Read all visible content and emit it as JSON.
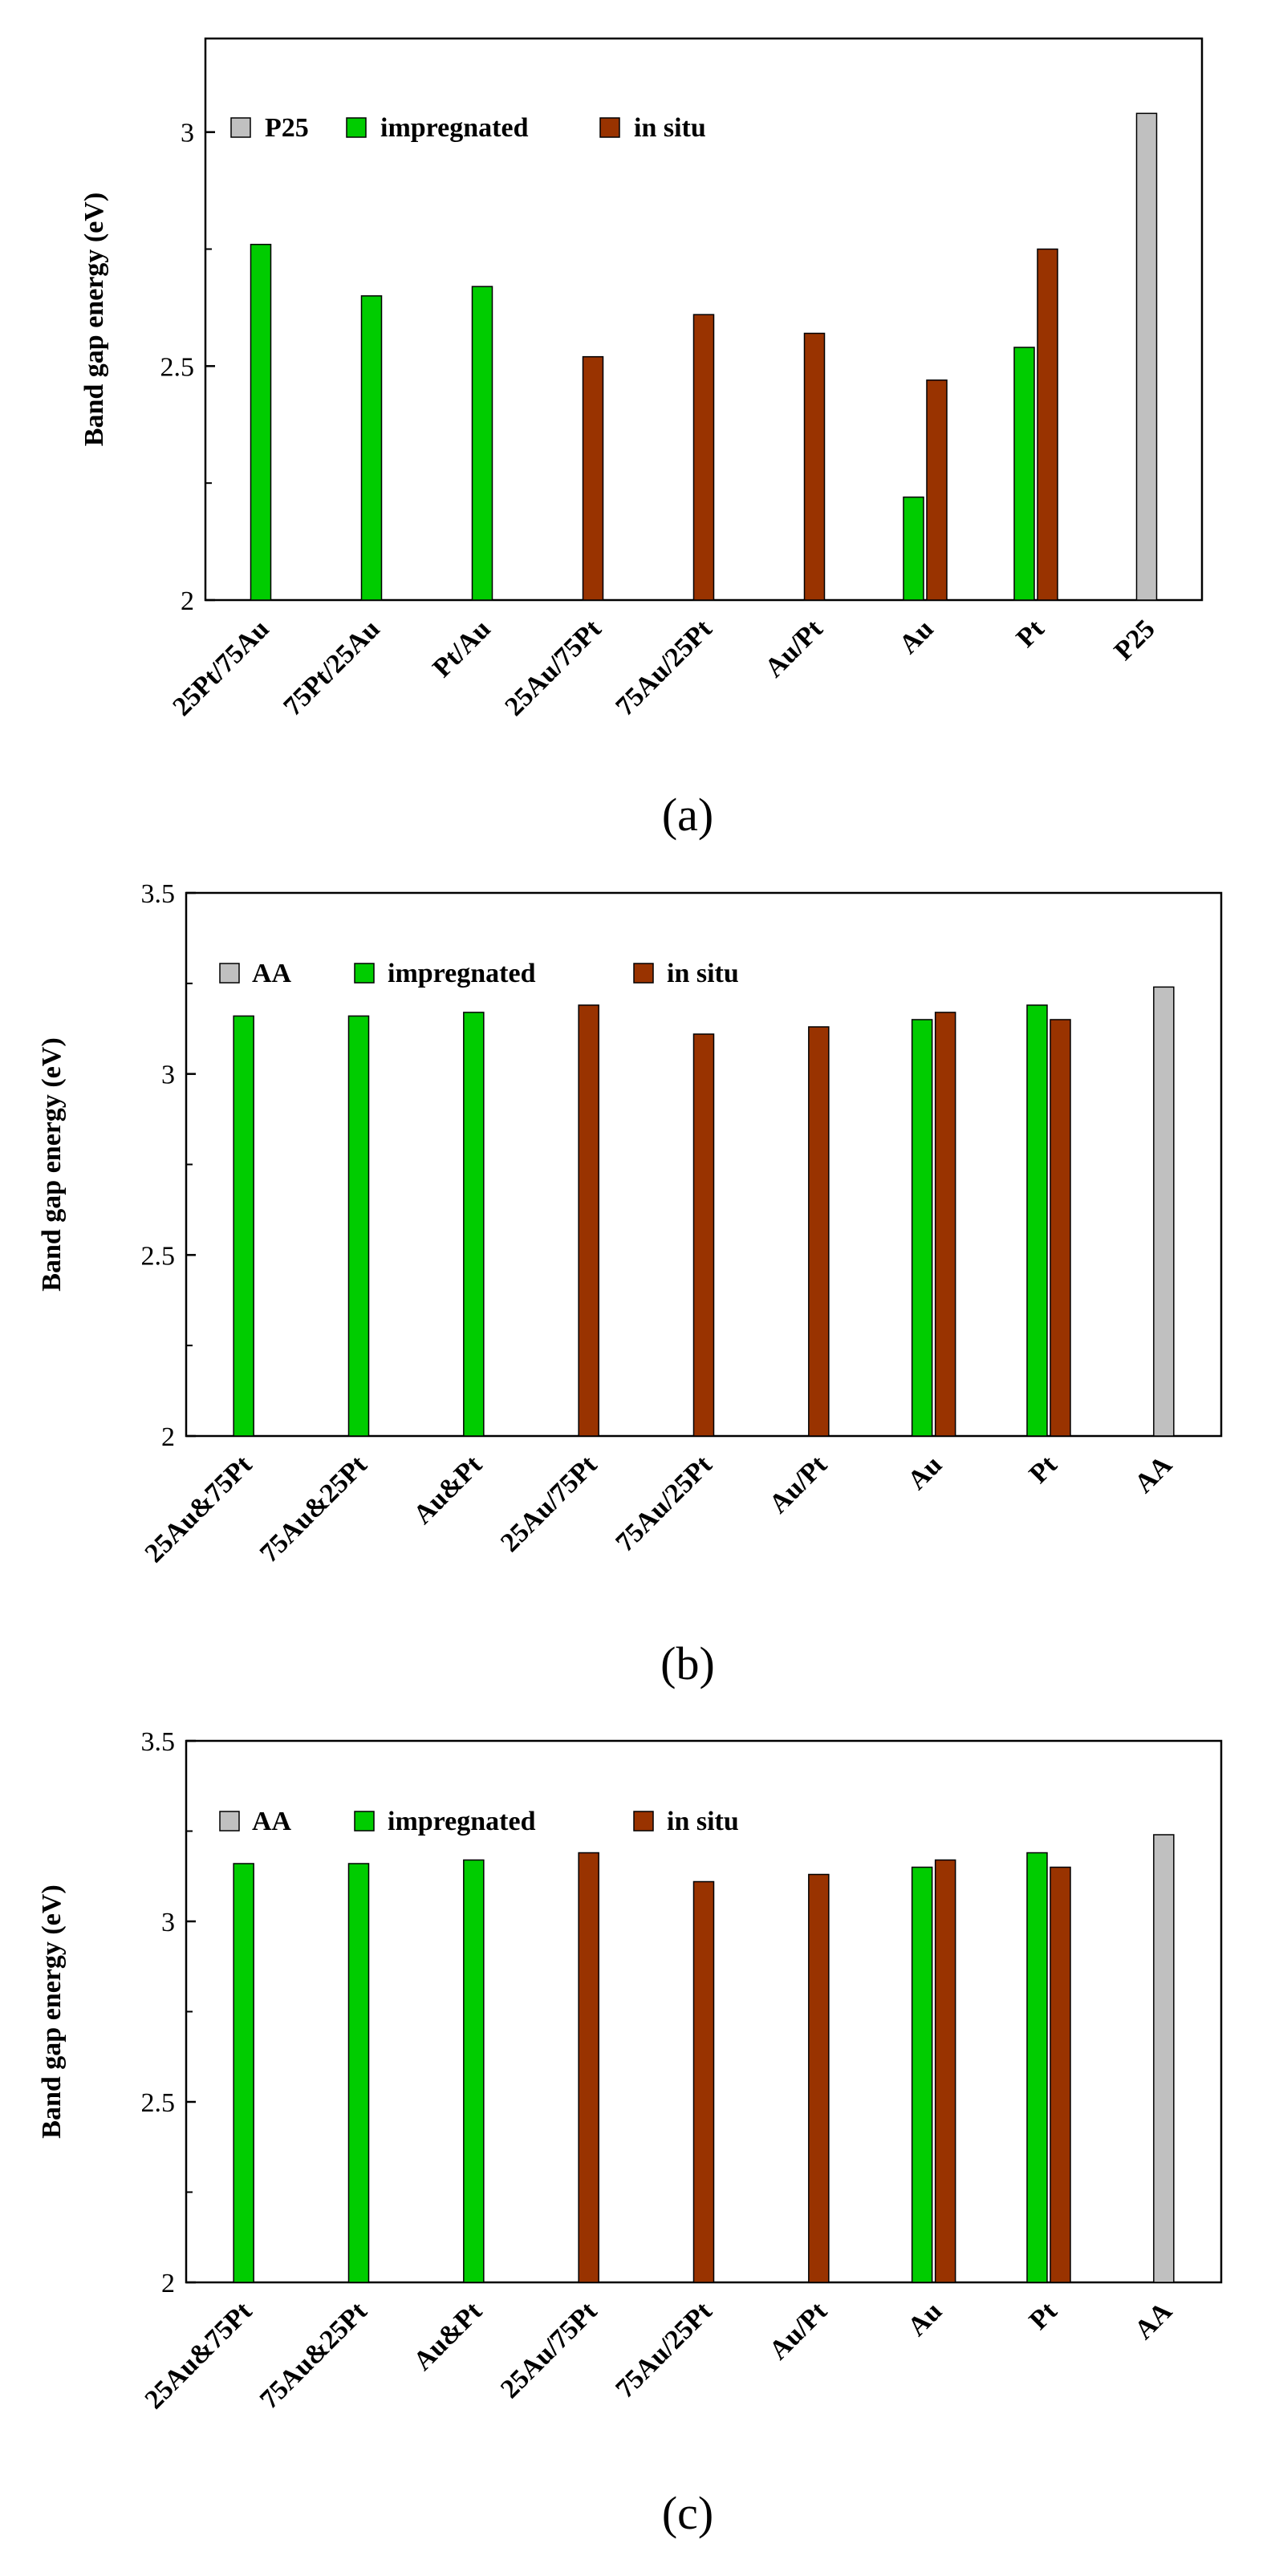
{
  "figure": {
    "colors": {
      "P25": "#c0c0c0",
      "AA": "#c0c0c0",
      "impregnated": "#00cc00",
      "in situ": "#993300"
    }
  },
  "chart_data": [
    {
      "type": "bar",
      "panel_label": "(a)",
      "ylabel": "Band gap energy (eV)",
      "xlabel": "",
      "ylim": [
        2,
        3.2
      ],
      "yticks": [
        2,
        2.5,
        3
      ],
      "minor_yticks": [
        2.25,
        2.75
      ],
      "legend_position": "top-left",
      "legend": [
        "P25",
        "impregnated",
        "in situ"
      ],
      "categories": [
        "25Pt/75Au",
        "75Pt/25Au",
        "Pt/Au",
        "25Au/75Pt",
        "75Au/25Pt",
        "Au/Pt",
        "Au",
        "Pt",
        "P25"
      ],
      "series": [
        {
          "name": "P25",
          "values": [
            null,
            null,
            null,
            null,
            null,
            null,
            null,
            null,
            3.04
          ]
        },
        {
          "name": "impregnated",
          "values": [
            2.76,
            2.65,
            2.67,
            null,
            null,
            null,
            2.22,
            2.54,
            null
          ]
        },
        {
          "name": "in situ",
          "values": [
            null,
            null,
            null,
            2.52,
            2.61,
            2.57,
            2.47,
            2.75,
            null
          ]
        }
      ]
    },
    {
      "type": "bar",
      "panel_label": "(b)",
      "ylabel": "Band gap energy (eV)",
      "xlabel": "",
      "ylim": [
        2,
        3.5
      ],
      "yticks": [
        2,
        2.5,
        3,
        3.5
      ],
      "minor_yticks": [
        2.25,
        2.75,
        3.25
      ],
      "legend_position": "top-left",
      "legend": [
        "AA",
        "impregnated",
        "in situ"
      ],
      "categories": [
        "25Au&75Pt",
        "75Au&25Pt",
        "Au&Pt",
        "25Au/75Pt",
        "75Au/25Pt",
        "Au/Pt",
        "Au",
        "Pt",
        "AA"
      ],
      "series": [
        {
          "name": "AA",
          "values": [
            null,
            null,
            null,
            null,
            null,
            null,
            null,
            null,
            3.24
          ]
        },
        {
          "name": "impregnated",
          "values": [
            3.16,
            3.16,
            3.17,
            null,
            null,
            null,
            3.15,
            3.19,
            null
          ]
        },
        {
          "name": "in situ",
          "values": [
            null,
            null,
            null,
            3.19,
            3.11,
            3.13,
            3.17,
            3.15,
            null
          ]
        }
      ]
    },
    {
      "type": "bar",
      "panel_label": "(c)",
      "ylabel": "Band gap energy (eV)",
      "xlabel": "",
      "ylim": [
        2,
        3.5
      ],
      "yticks": [
        2,
        2.5,
        3,
        3.5
      ],
      "minor_yticks": [
        2.25,
        2.75,
        3.25
      ],
      "legend_position": "top-left",
      "legend": [
        "AA",
        "impregnated",
        "in situ"
      ],
      "categories": [
        "25Au&75Pt",
        "75Au&25Pt",
        "Au&Pt",
        "25Au/75Pt",
        "75Au/25Pt",
        "Au/Pt",
        "Au",
        "Pt",
        "AA"
      ],
      "series": [
        {
          "name": "AA",
          "values": [
            null,
            null,
            null,
            null,
            null,
            null,
            null,
            null,
            3.24
          ]
        },
        {
          "name": "impregnated",
          "values": [
            3.16,
            3.16,
            3.17,
            null,
            null,
            null,
            3.15,
            3.19,
            null
          ]
        },
        {
          "name": "in situ",
          "values": [
            null,
            null,
            null,
            3.19,
            3.11,
            3.13,
            3.17,
            3.15,
            null
          ]
        }
      ]
    }
  ]
}
